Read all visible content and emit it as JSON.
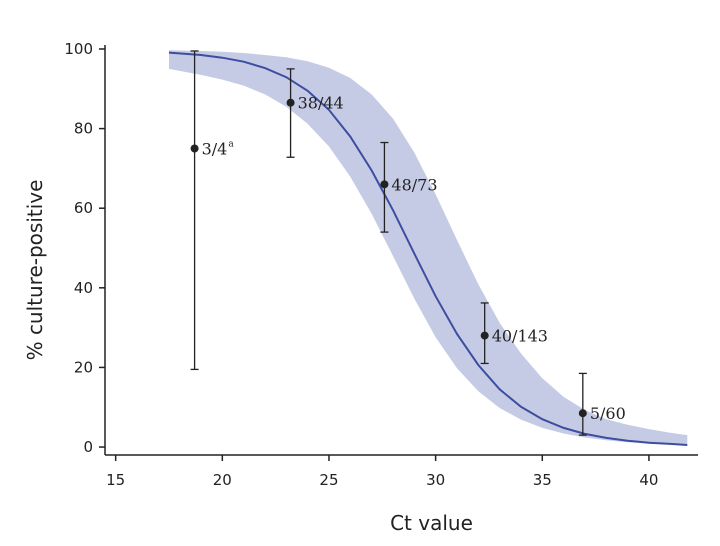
{
  "chart_data": {
    "type": "line",
    "xlabel": "Ct value",
    "ylabel": "% culture-positive",
    "xlim": [
      14.5,
      42.3
    ],
    "ylim": [
      -2,
      101
    ],
    "xticks": [
      "15",
      "20",
      "25",
      "30",
      "35",
      "40"
    ],
    "yticks": [
      "0",
      "20",
      "40",
      "60",
      "80",
      "100"
    ],
    "grid": false,
    "colors": {
      "curve": "#3d4ea0",
      "band": "#c6cbe5",
      "points": "#222222",
      "axis": "#222222"
    },
    "fitted_curve": {
      "x": [
        17.5,
        19,
        20,
        21,
        22,
        23,
        24,
        25,
        26,
        27,
        28,
        29,
        30,
        31,
        32,
        33,
        34,
        35,
        36,
        37,
        38,
        39,
        40,
        41,
        41.8
      ],
      "y": [
        99.1,
        98.5,
        97.8,
        96.8,
        95.2,
        92.9,
        89.5,
        84.7,
        78.0,
        69.5,
        59.5,
        48.6,
        37.9,
        28.4,
        20.6,
        14.5,
        10.1,
        7.0,
        4.8,
        3.3,
        2.3,
        1.6,
        1.1,
        0.8,
        0.5
      ],
      "lower": [
        95.0,
        93.5,
        92.3,
        90.8,
        88.6,
        85.5,
        81.2,
        75.5,
        67.9,
        58.6,
        48.0,
        37.3,
        27.6,
        19.8,
        14.0,
        9.8,
        6.9,
        4.8,
        3.4,
        2.4,
        1.7,
        1.2,
        0.9,
        0.6,
        0.4
      ],
      "upper": [
        99.7,
        99.5,
        99.3,
        99.0,
        98.5,
        97.9,
        96.9,
        95.3,
        92.7,
        88.6,
        82.5,
        74.0,
        63.5,
        52.0,
        40.9,
        31.2,
        23.5,
        17.3,
        12.6,
        9.3,
        7.0,
        5.6,
        4.5,
        3.6,
        3.0
      ]
    },
    "points": [
      {
        "x": 18.7,
        "y": 75,
        "err_low": 19.5,
        "err_high": 99.5,
        "label": "3/4",
        "sup": "a"
      },
      {
        "x": 23.2,
        "y": 86.5,
        "err_low": 72.8,
        "err_high": 95,
        "label": "38/44",
        "sup": ""
      },
      {
        "x": 27.6,
        "y": 66,
        "err_low": 54,
        "err_high": 76.5,
        "label": "48/73",
        "sup": ""
      },
      {
        "x": 32.3,
        "y": 28,
        "err_low": 21,
        "err_high": 36.2,
        "label": "40/143",
        "sup": ""
      },
      {
        "x": 36.9,
        "y": 8.5,
        "err_low": 3,
        "err_high": 18.5,
        "label": "5/60",
        "sup": ""
      }
    ]
  }
}
